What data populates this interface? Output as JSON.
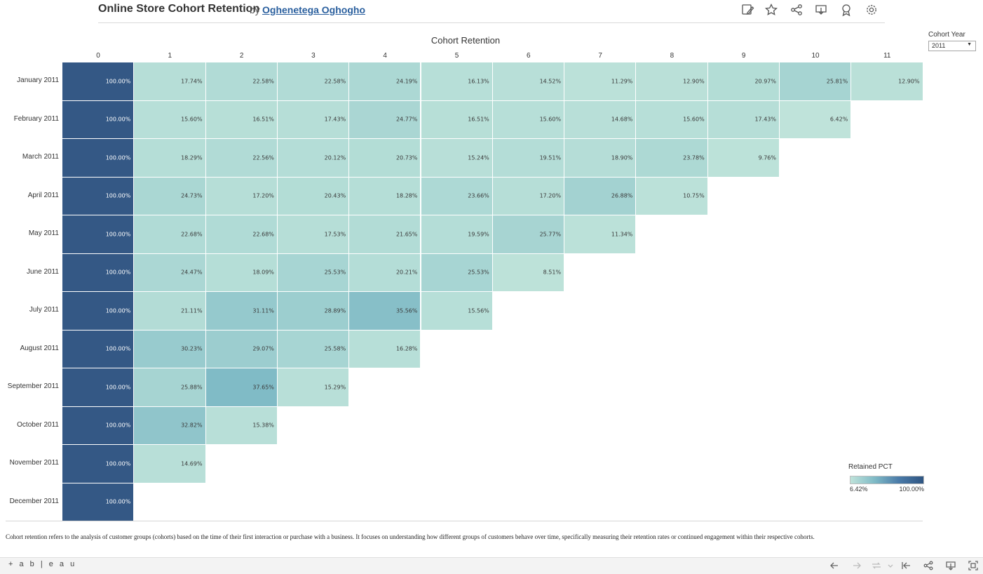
{
  "header": {
    "title": "Online Store Cohort Retention",
    "by": "by",
    "author": "Oghenetega Oghogho",
    "toolbar_icons": [
      "edit-icon",
      "star-icon",
      "share-icon",
      "download-icon",
      "badge-icon",
      "settings-icon"
    ]
  },
  "filter": {
    "label": "Cohort Year",
    "value": "2011"
  },
  "legend": {
    "title": "Retained PCT",
    "min": "6.42%",
    "max": "100.00%",
    "colors": [
      "#bfe3da",
      "#7fbac6",
      "#2f5582"
    ]
  },
  "caption": "Cohort retention refers to the analysis of customer groups (cohorts) based on the time of their first interaction or purchase with a business. It focuses on understanding how different groups of customers behave over time, specifically measuring their retention rates or continued engagement within their respective cohorts.",
  "footer": {
    "brand": "+ a b | e a u"
  },
  "chart_data": {
    "type": "heatmap",
    "title": "Cohort Retention",
    "columns": [
      "0",
      "1",
      "2",
      "3",
      "4",
      "5",
      "6",
      "7",
      "8",
      "9",
      "10",
      "11"
    ],
    "rows": [
      {
        "label": "January 2011",
        "values": [
          "100.00%",
          "17.74%",
          "22.58%",
          "22.58%",
          "24.19%",
          "16.13%",
          "14.52%",
          "11.29%",
          "12.90%",
          "20.97%",
          "25.81%",
          "12.90%"
        ]
      },
      {
        "label": "February 2011",
        "values": [
          "100.00%",
          "15.60%",
          "16.51%",
          "17.43%",
          "24.77%",
          "16.51%",
          "15.60%",
          "14.68%",
          "15.60%",
          "17.43%",
          "6.42%"
        ]
      },
      {
        "label": "March 2011",
        "values": [
          "100.00%",
          "18.29%",
          "22.56%",
          "20.12%",
          "20.73%",
          "15.24%",
          "19.51%",
          "18.90%",
          "23.78%",
          "9.76%"
        ]
      },
      {
        "label": "April 2011",
        "values": [
          "100.00%",
          "24.73%",
          "17.20%",
          "20.43%",
          "18.28%",
          "23.66%",
          "17.20%",
          "26.88%",
          "10.75%"
        ]
      },
      {
        "label": "May 2011",
        "values": [
          "100.00%",
          "22.68%",
          "22.68%",
          "17.53%",
          "21.65%",
          "19.59%",
          "25.77%",
          "11.34%"
        ]
      },
      {
        "label": "June 2011",
        "values": [
          "100.00%",
          "24.47%",
          "18.09%",
          "25.53%",
          "20.21%",
          "25.53%",
          "8.51%"
        ]
      },
      {
        "label": "July 2011",
        "values": [
          "100.00%",
          "21.11%",
          "31.11%",
          "28.89%",
          "35.56%",
          "15.56%"
        ]
      },
      {
        "label": "August 2011",
        "values": [
          "100.00%",
          "30.23%",
          "29.07%",
          "25.58%",
          "16.28%"
        ]
      },
      {
        "label": "September 2011",
        "values": [
          "100.00%",
          "25.88%",
          "37.65%",
          "15.29%"
        ]
      },
      {
        "label": "October 2011",
        "values": [
          "100.00%",
          "32.82%",
          "15.38%"
        ]
      },
      {
        "label": "November 2011",
        "values": [
          "100.00%",
          "14.69%"
        ]
      },
      {
        "label": "December 2011",
        "values": [
          "100.00%"
        ]
      }
    ],
    "color_range": [
      6.42,
      100.0
    ]
  }
}
